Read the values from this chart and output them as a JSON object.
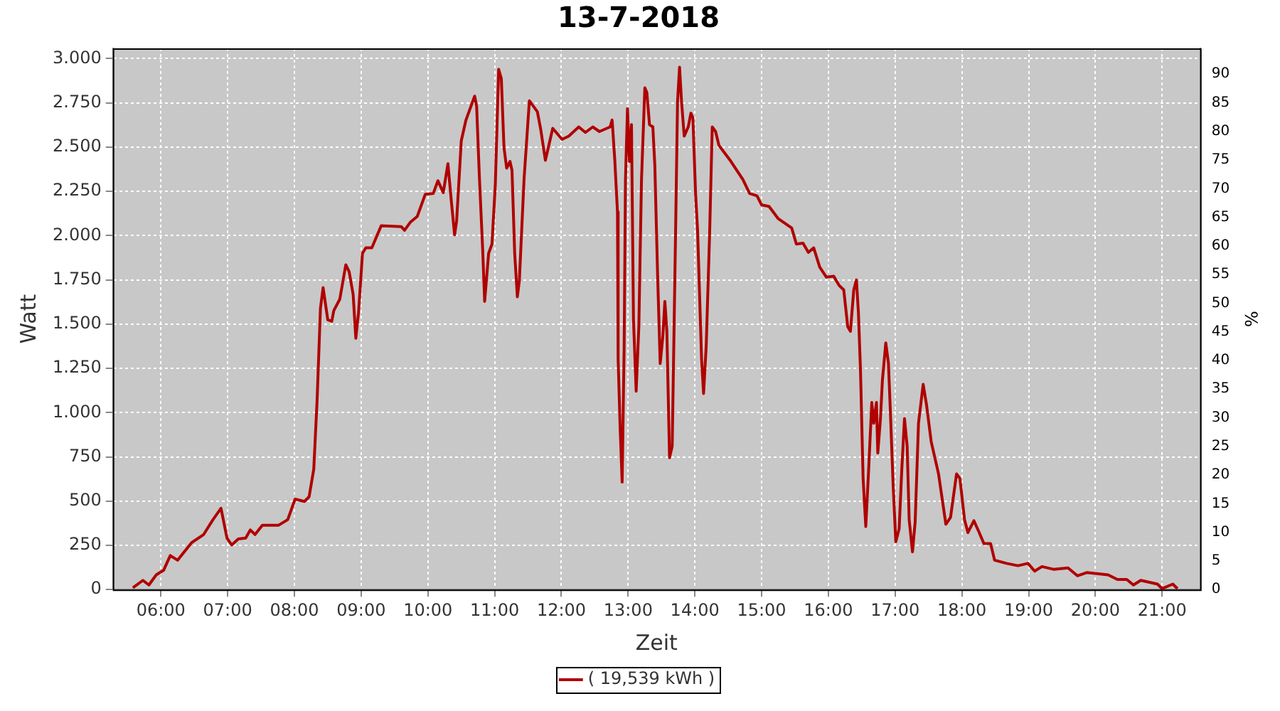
{
  "chart_data": {
    "type": "line",
    "title": "13-7-2018",
    "xlabel": "Zeit",
    "ylabel": "Watt",
    "y2label": "%",
    "xlim": [
      5.28,
      21.57
    ],
    "xticks": [
      {
        "value": 6,
        "label": "06:00"
      },
      {
        "value": 7,
        "label": "07:00"
      },
      {
        "value": 8,
        "label": "08:00"
      },
      {
        "value": 9,
        "label": "09:00"
      },
      {
        "value": 10,
        "label": "10:00"
      },
      {
        "value": 11,
        "label": "11:00"
      },
      {
        "value": 12,
        "label": "12:00"
      },
      {
        "value": 13,
        "label": "13:00"
      },
      {
        "value": 14,
        "label": "14:00"
      },
      {
        "value": 15,
        "label": "15:00"
      },
      {
        "value": 16,
        "label": "16:00"
      },
      {
        "value": 17,
        "label": "17:00"
      },
      {
        "value": 18,
        "label": "18:00"
      },
      {
        "value": 19,
        "label": "19:00"
      },
      {
        "value": 20,
        "label": "20:00"
      },
      {
        "value": 21,
        "label": "21:00"
      }
    ],
    "ylim": [
      0,
      3058
    ],
    "yticks": [
      0,
      250,
      500,
      750,
      {
        "value": 1000,
        "label": "1.000"
      },
      {
        "value": 1250,
        "label": "1.250"
      },
      {
        "value": 1500,
        "label": "1.500"
      },
      {
        "value": 1750,
        "label": "1.750"
      },
      {
        "value": 2000,
        "label": "2.000"
      },
      {
        "value": 2250,
        "label": "2.250"
      },
      {
        "value": 2500,
        "label": "2.500"
      },
      {
        "value": 2750,
        "label": "2.750"
      },
      {
        "value": 3000,
        "label": "3.000"
      }
    ],
    "y2lim": [
      0,
      94.5
    ],
    "y2ticks": [
      0,
      5,
      10,
      15,
      20,
      25,
      30,
      35,
      40,
      45,
      50,
      55,
      60,
      65,
      70,
      75,
      80,
      85,
      90
    ],
    "grid": true,
    "legend": "bottom",
    "marker": "none",
    "line_style": "solid",
    "series": [
      {
        "name": "( 19,539 kWh )",
        "color": "#b00000",
        "x": [
          5.58,
          5.73,
          5.82,
          5.93,
          6.04,
          6.14,
          6.25,
          6.46,
          6.64,
          6.78,
          6.9,
          6.99,
          7.06,
          7.16,
          7.27,
          7.34,
          7.41,
          7.52,
          7.76,
          7.9,
          8.01,
          8.15,
          8.22,
          8.29,
          8.34,
          8.39,
          8.43,
          8.5,
          8.56,
          8.59,
          8.68,
          8.77,
          8.82,
          8.88,
          8.92,
          8.96,
          9.02,
          9.07,
          9.16,
          9.3,
          9.6,
          9.65,
          9.74,
          9.84,
          9.96,
          10.08,
          10.15,
          10.23,
          10.3,
          10.35,
          10.4,
          10.43,
          10.5,
          10.57,
          10.7,
          10.73,
          10.77,
          10.82,
          10.85,
          10.91,
          10.96,
          11.01,
          11.06,
          11.1,
          11.14,
          11.18,
          11.23,
          11.26,
          11.3,
          11.34,
          11.37,
          11.44,
          11.52,
          11.64,
          11.69,
          11.76,
          11.87,
          12.01,
          12.11,
          12.26,
          12.36,
          12.47,
          12.57,
          12.73,
          12.76,
          12.8,
          12.84,
          12.85,
          12.88,
          12.91,
          12.94,
          12.96,
          12.99,
          13.02,
          13.05,
          13.08,
          13.12,
          13.16,
          13.2,
          13.25,
          13.28,
          13.32,
          13.37,
          13.4,
          13.44,
          13.48,
          13.52,
          13.55,
          13.58,
          13.62,
          13.66,
          13.71,
          13.74,
          13.77,
          13.8,
          13.84,
          13.9,
          13.94,
          13.97,
          14.01,
          14.04,
          14.1,
          14.13,
          14.17,
          14.22,
          14.26,
          14.31,
          14.36,
          14.54,
          14.72,
          14.82,
          14.93,
          15,
          15.11,
          15.25,
          15.45,
          15.52,
          15.62,
          15.7,
          15.78,
          15.87,
          15.97,
          16.08,
          16.16,
          16.23,
          16.29,
          16.33,
          16.38,
          16.42,
          16.45,
          16.48,
          16.52,
          16.56,
          16.6,
          16.65,
          16.68,
          16.72,
          16.74,
          16.78,
          16.81,
          16.86,
          16.9,
          16.93,
          16.97,
          17.01,
          17.06,
          17.1,
          17.14,
          17.18,
          17.21,
          17.26,
          17.3,
          17.35,
          17.42,
          17.47,
          17.54,
          17.65,
          17.76,
          17.83,
          17.92,
          17.97,
          18.04,
          18.09,
          18.18,
          18.25,
          18.33,
          18.43,
          18.49,
          18.67,
          18.84,
          18.99,
          19.09,
          19.2,
          19.38,
          19.59,
          19.73,
          19.87,
          20.19,
          20.33,
          20.47,
          20.57,
          20.68,
          20.93,
          21,
          21.16,
          21.23
        ],
        "values": [
          10,
          52,
          26,
          83,
          109,
          192,
          166,
          265,
          311,
          395,
          459,
          291,
          252,
          286,
          291,
          337,
          311,
          363,
          363,
          395,
          511,
          498,
          524,
          680,
          1070,
          1589,
          1706,
          1524,
          1516,
          1576,
          1641,
          1835,
          1796,
          1667,
          1420,
          1563,
          1900,
          1931,
          1931,
          2056,
          2051,
          2030,
          2077,
          2108,
          2233,
          2238,
          2310,
          2243,
          2406,
          2199,
          2004,
          2082,
          2536,
          2653,
          2788,
          2731,
          2342,
          1926,
          1628,
          1900,
          1952,
          2289,
          2939,
          2887,
          2497,
          2381,
          2419,
          2368,
          1900,
          1654,
          1745,
          2316,
          2762,
          2700,
          2601,
          2425,
          2606,
          2544,
          2562,
          2614,
          2583,
          2614,
          2588,
          2614,
          2653,
          2425,
          2134,
          1303,
          914,
          607,
          1368,
          2316,
          2718,
          2419,
          2627,
          1524,
          1121,
          1485,
          2316,
          2835,
          2809,
          2627,
          2614,
          2394,
          1796,
          1277,
          1433,
          1628,
          1459,
          745,
          810,
          2004,
          2757,
          2952,
          2757,
          2562,
          2614,
          2692,
          2666,
          2238,
          2030,
          1303,
          1108,
          1381,
          2004,
          2614,
          2588,
          2510,
          2419,
          2316,
          2238,
          2225,
          2173,
          2165,
          2095,
          2043,
          1952,
          1957,
          1905,
          1931,
          1822,
          1765,
          1770,
          1719,
          1693,
          1485,
          1459,
          1693,
          1750,
          1563,
          1251,
          628,
          356,
          654,
          1057,
          940,
          1057,
          771,
          966,
          1186,
          1394,
          1277,
          992,
          589,
          270,
          343,
          680,
          966,
          810,
          395,
          213,
          382,
          940,
          1160,
          1044,
          836,
          654,
          369,
          408,
          654,
          628,
          395,
          322,
          389,
          330,
          260,
          260,
          166,
          148,
          135,
          148,
          104,
          130,
          114,
          122,
          78,
          96,
          83,
          57,
          57,
          26,
          52,
          31,
          5,
          31,
          5
        ]
      }
    ]
  }
}
